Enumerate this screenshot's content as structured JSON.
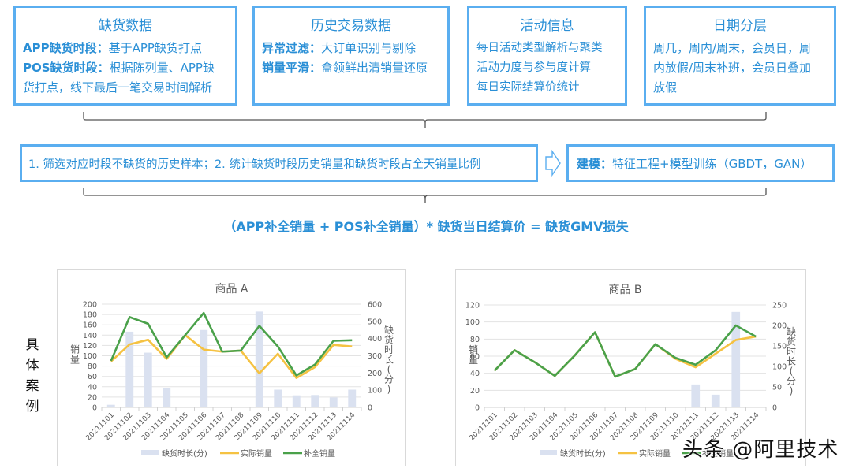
{
  "boxes": [
    {
      "title": "缺货数据",
      "lines": [
        {
          "bold": "APP缺货时段：",
          "text": "基于APP缺货打点"
        },
        {
          "bold": "POS缺货时段：",
          "text": "根据陈列量、APP缺"
        },
        {
          "bold": "",
          "text": "货打点，线下最后一笔交易时间解析"
        }
      ]
    },
    {
      "title": "历史交易数据",
      "lines": [
        {
          "bold": "异常过滤：",
          "text": "大订单识别与剔除"
        },
        {
          "bold": "销量平滑：",
          "text": "盒领鲜出清销量还原"
        }
      ]
    },
    {
      "title": "活动信息",
      "lines": [
        {
          "bold": "",
          "text": "每日活动类型解析与聚类"
        },
        {
          "bold": "",
          "text": "活动力度与参与度计算"
        },
        {
          "bold": "",
          "text": "每日实际结算价统计"
        }
      ]
    },
    {
      "title": "日期分层",
      "lines": [
        {
          "bold": "",
          "text": "周几，周内/周末，会员日，周"
        },
        {
          "bold": "",
          "text": "内放假/周末补班，会员日叠加"
        },
        {
          "bold": "",
          "text": "放假"
        }
      ]
    }
  ],
  "flow": {
    "step1": "1. 筛选对应时段不缺货的历史样本；2. 统计缺货时段历史销量和缺货时段占全天销量比例",
    "step2_bold": "建模：",
    "step2_text": "特征工程+模型训练（GBDT，GAN）"
  },
  "formula": "（APP补全销量  +  POS补全销量）*  缺货当日结算价  =  缺货GMV损失",
  "side_label": [
    "具",
    "体",
    "案",
    "例"
  ],
  "watermark": "头条 @阿里技术",
  "colors": {
    "accent": "#2a8fd6",
    "box_border": "#5aaef0",
    "bar": "#dae1f0",
    "actual": "#f5c242",
    "completed": "#4aa14a"
  },
  "chart_data": [
    {
      "type": "bar+line",
      "title": "商品 A",
      "categories": [
        "20211101",
        "20211102",
        "20211103",
        "20211104",
        "20211105",
        "20211106",
        "20211107",
        "20211108",
        "20211109",
        "20211110",
        "20211111",
        "20211112",
        "20211113",
        "20211114"
      ],
      "ylabel": "销量",
      "y2label": "缺货时长(分)",
      "ylim": [
        0,
        200
      ],
      "yticks": [
        0,
        20,
        40,
        60,
        80,
        100,
        120,
        140,
        160,
        180,
        200
      ],
      "y2lim": [
        0,
        600
      ],
      "y2ticks": [
        0,
        100,
        200,
        300,
        400,
        500,
        600
      ],
      "grid": true,
      "legend_position": "bottom",
      "series": [
        {
          "name": "缺货时长(分)",
          "type": "bar",
          "axis": "right",
          "values": [
            15,
            440,
            318,
            113,
            0,
            450,
            0,
            0,
            557,
            103,
            70,
            72,
            58,
            103
          ]
        },
        {
          "name": "实际销量",
          "type": "line",
          "axis": "left",
          "values": [
            89,
            122,
            131,
            94,
            140,
            112,
            108,
            110,
            66,
            104,
            57,
            78,
            121,
            118
          ]
        },
        {
          "name": "补全销量",
          "type": "line",
          "axis": "left",
          "values": [
            90,
            175,
            162,
            97,
            140,
            183,
            108,
            110,
            158,
            118,
            62,
            83,
            129,
            130
          ]
        }
      ]
    },
    {
      "type": "bar+line",
      "title": "商品 B",
      "categories": [
        "20211101",
        "20211102",
        "20211103",
        "20211104",
        "20211105",
        "20211106",
        "20211107",
        "20211108",
        "20211109",
        "20211110",
        "20211111",
        "20211112",
        "20211113",
        "20211114"
      ],
      "ylabel": "销量",
      "y2label": "缺货时长(分)",
      "ylim": [
        0,
        120
      ],
      "yticks": [
        0,
        20,
        40,
        60,
        80,
        100,
        120
      ],
      "y2lim": [
        0,
        250
      ],
      "y2ticks": [
        0,
        50,
        100,
        150,
        200,
        250
      ],
      "grid": true,
      "legend_position": "bottom",
      "series": [
        {
          "name": "缺货时长(分)",
          "type": "bar",
          "axis": "right",
          "values": [
            0,
            0,
            0,
            0,
            0,
            0,
            0,
            0,
            0,
            0,
            56,
            31,
            233,
            0
          ]
        },
        {
          "name": "实际销量",
          "type": "line",
          "axis": "left",
          "values": [
            43,
            67,
            53,
            37,
            61,
            88,
            36,
            45,
            74,
            57,
            47,
            63,
            79,
            83
          ]
        },
        {
          "name": "补全销量",
          "type": "line",
          "axis": "left",
          "values": [
            43,
            67,
            53,
            37,
            61,
            88,
            36,
            45,
            74,
            58,
            50,
            67,
            96,
            83
          ]
        }
      ]
    }
  ]
}
